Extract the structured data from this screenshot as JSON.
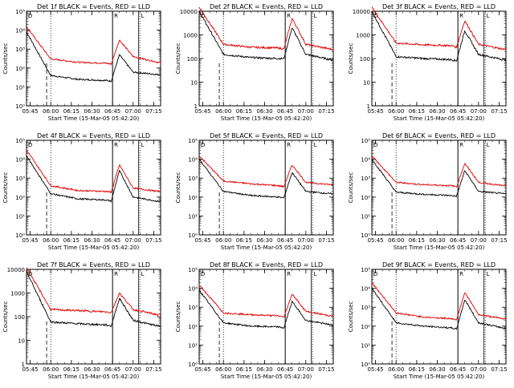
{
  "figure": {
    "colors": {
      "events": "#000000",
      "lld": "#e00000",
      "background": "#ffffff"
    },
    "x_tick_labels": [
      "05:45",
      "06:00",
      "06:15",
      "06:30",
      "06:45",
      "07:00",
      "07:15"
    ],
    "markers": {
      "left": "D",
      "middle": "R",
      "right": "L"
    }
  },
  "chart_data": [
    {
      "type": "line",
      "title": "Det 1f BLACK = Events, RED = LLD",
      "xlabel": "Start Time (15-Mar-05 05:42:20)",
      "ylabel": "Counts/sec",
      "y_scale": "log",
      "y_tick_labels": [
        "10⁰",
        "10¹",
        "10²",
        "10³",
        "10⁴",
        "10⁵"
      ],
      "ylim": [
        1,
        100000
      ],
      "x": [
        "05:42",
        "06:00",
        "06:20",
        "06:40",
        "06:44",
        "06:50",
        "07:00",
        "07:18"
      ],
      "series": [
        {
          "name": "Events",
          "values": [
            8000,
            40,
            25,
            22,
            20,
            500,
            60,
            45
          ]
        },
        {
          "name": "LLD",
          "values": [
            15000,
            300,
            200,
            180,
            160,
            3000,
            400,
            200
          ]
        }
      ]
    },
    {
      "type": "line",
      "title": "Det 2f BLACK = Events, RED = LLD",
      "xlabel": "Start Time (15-Mar-05 05:42:20)",
      "ylabel": "Counts/sec",
      "y_scale": "log",
      "y_tick_labels": [
        "1",
        "10",
        "100",
        "1000",
        "10000"
      ],
      "ylim": [
        1,
        10000
      ],
      "x": [
        "05:42",
        "06:00",
        "06:20",
        "06:40",
        "06:44",
        "06:50",
        "07:00",
        "07:18"
      ],
      "series": [
        {
          "name": "Events",
          "values": [
            10000,
            150,
            110,
            100,
            100,
            2000,
            150,
            90
          ]
        },
        {
          "name": "LLD",
          "values": [
            15000,
            400,
            300,
            280,
            250,
            5000,
            400,
            250
          ]
        }
      ]
    },
    {
      "type": "line",
      "title": "Det 3f BLACK = Events, RED = LLD",
      "xlabel": "Start Time (15-Mar-05 05:42:20)",
      "ylabel": "Counts/sec",
      "y_scale": "log",
      "y_tick_labels": [
        "1",
        "10",
        "100",
        "1000",
        "10000"
      ],
      "ylim": [
        1,
        10000
      ],
      "x": [
        "05:42",
        "06:00",
        "06:20",
        "06:40",
        "06:44",
        "06:50",
        "07:00",
        "07:18"
      ],
      "series": [
        {
          "name": "Events",
          "values": [
            10000,
            120,
            100,
            90,
            80,
            1500,
            150,
            90
          ]
        },
        {
          "name": "LLD",
          "values": [
            15000,
            450,
            380,
            350,
            300,
            4000,
            400,
            250
          ]
        }
      ]
    },
    {
      "type": "line",
      "title": "Det 4f BLACK = Events, RED = LLD",
      "xlabel": "Start Time (15-Mar-05 05:42:20)",
      "ylabel": "Counts/sec",
      "y_scale": "log",
      "y_tick_labels": [
        "10⁰",
        "10¹",
        "10²",
        "10³",
        "10⁴",
        "10⁵"
      ],
      "ylim": [
        1,
        100000
      ],
      "x": [
        "05:42",
        "06:00",
        "06:20",
        "06:40",
        "06:44",
        "06:50",
        "07:00",
        "07:18"
      ],
      "series": [
        {
          "name": "Events",
          "values": [
            15000,
            150,
            80,
            70,
            60,
            2500,
            100,
            60
          ]
        },
        {
          "name": "LLD",
          "values": [
            30000,
            400,
            220,
            200,
            180,
            5000,
            300,
            200
          ]
        }
      ]
    },
    {
      "type": "line",
      "title": "Det 5f BLACK = Events, RED = LLD",
      "xlabel": "Start Time (15-Mar-05 05:42:20)",
      "ylabel": "Counts/sec",
      "y_scale": "log",
      "y_tick_labels": [
        "10⁰",
        "10¹",
        "10²",
        "10³",
        "10⁴",
        "10⁵"
      ],
      "ylim": [
        1,
        100000
      ],
      "x": [
        "05:42",
        "06:00",
        "06:20",
        "06:40",
        "06:44",
        "06:50",
        "07:00",
        "07:18"
      ],
      "series": [
        {
          "name": "Events",
          "values": [
            10000,
            200,
            120,
            100,
            90,
            2000,
            200,
            150
          ]
        },
        {
          "name": "LLD",
          "values": [
            15000,
            700,
            500,
            400,
            350,
            5000,
            600,
            450
          ]
        }
      ]
    },
    {
      "type": "line",
      "title": "Det 6f BLACK = Events, RED = LLD",
      "xlabel": "Start Time (15-Mar-05 05:42:20)",
      "ylabel": "Counts/sec",
      "y_scale": "log",
      "y_tick_labels": [
        "10⁰",
        "10¹",
        "10²",
        "10³",
        "10⁴",
        "10⁵"
      ],
      "ylim": [
        1,
        100000
      ],
      "x": [
        "05:42",
        "06:00",
        "06:20",
        "06:40",
        "06:44",
        "06:50",
        "07:00",
        "07:18"
      ],
      "series": [
        {
          "name": "Events",
          "values": [
            10000,
            180,
            140,
            120,
            110,
            2500,
            200,
            150
          ]
        },
        {
          "name": "LLD",
          "values": [
            15000,
            600,
            450,
            400,
            350,
            6000,
            600,
            400
          ]
        }
      ]
    },
    {
      "type": "line",
      "title": "Det 7f BLACK = Events, RED = LLD",
      "xlabel": "Start Time (15-Mar-05 05:42:20)",
      "ylabel": "Counts/sec",
      "y_scale": "log",
      "y_tick_labels": [
        "1",
        "10",
        "100",
        "1000",
        "10000"
      ],
      "ylim": [
        1,
        10000
      ],
      "x": [
        "05:42",
        "06:00",
        "06:20",
        "06:40",
        "06:44",
        "06:50",
        "07:00",
        "07:18"
      ],
      "series": [
        {
          "name": "Events",
          "values": [
            8000,
            60,
            50,
            45,
            40,
            600,
            70,
            40
          ]
        },
        {
          "name": "LLD",
          "values": [
            12000,
            200,
            180,
            160,
            150,
            1000,
            200,
            120
          ]
        }
      ]
    },
    {
      "type": "line",
      "title": "Det 8f BLACK = Events, RED = LLD",
      "xlabel": "Start Time (15-Mar-05 05:42:20)",
      "ylabel": "Counts/sec",
      "y_scale": "log",
      "y_tick_labels": [
        "10⁰",
        "10¹",
        "10²",
        "10³",
        "10⁴",
        "10⁵"
      ],
      "ylim": [
        1,
        100000
      ],
      "x": [
        "05:42",
        "06:00",
        "06:20",
        "06:40",
        "06:44",
        "06:50",
        "07:00",
        "07:18"
      ],
      "series": [
        {
          "name": "Events",
          "values": [
            8000,
            150,
            100,
            90,
            80,
            2000,
            200,
            120
          ]
        },
        {
          "name": "LLD",
          "values": [
            15000,
            500,
            400,
            350,
            300,
            5000,
            600,
            350
          ]
        }
      ]
    },
    {
      "type": "line",
      "title": "Det 9f BLACK = Events, RED = LLD",
      "xlabel": "Start Time (15-Mar-05 05:42:20)",
      "ylabel": "Counts/sec",
      "y_scale": "log",
      "y_tick_labels": [
        "10⁰",
        "10¹",
        "10²",
        "10³",
        "10⁴",
        "10⁵"
      ],
      "ylim": [
        1,
        100000
      ],
      "x": [
        "05:42",
        "06:00",
        "06:20",
        "06:40",
        "06:44",
        "06:50",
        "07:00",
        "07:18"
      ],
      "series": [
        {
          "name": "Events",
          "values": [
            10000,
            150,
            100,
            80,
            70,
            2500,
            150,
            80
          ]
        },
        {
          "name": "LLD",
          "values": [
            20000,
            500,
            300,
            250,
            220,
            6000,
            400,
            250
          ]
        }
      ]
    }
  ]
}
